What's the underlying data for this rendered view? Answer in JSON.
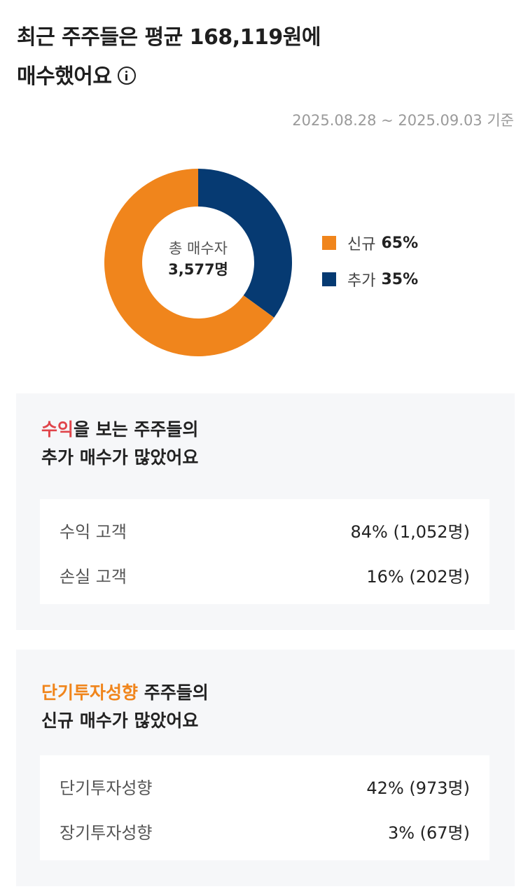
{
  "header": {
    "title_line1": "최근 주주들은 평균 168,119원에",
    "title_line2": "매수했어요",
    "info_icon": "info-circle-icon",
    "date_range": "2025.08.28 ~ 2025.09.03 기준"
  },
  "chart_data": {
    "type": "pie",
    "center_label": "총 매수자",
    "center_value": "3,577명",
    "slices": [
      {
        "name": "신규",
        "value": 65,
        "pct_label": "65%",
        "color": "#f0851c"
      },
      {
        "name": "추가",
        "value": 35,
        "pct_label": "35%",
        "color": "#063a72"
      }
    ]
  },
  "profit_card": {
    "title_highlight": "수익",
    "title_rest": "을 보는 주주들의",
    "title_line2": "추가 매수가 많았어요",
    "highlight_color": "#e0444a",
    "rows": [
      {
        "label": "수익 고객",
        "value": "84% (1,052명)"
      },
      {
        "label": "손실 고객",
        "value": "16% (202명)"
      }
    ]
  },
  "style_card": {
    "title_highlight": "단기투자성향",
    "title_rest": " 주주들의",
    "title_line2": "신규 매수가 많았어요",
    "highlight_color": "#f0851c",
    "rows": [
      {
        "label": "단기투자성향",
        "value": "42% (973명)"
      },
      {
        "label": "장기투자성향",
        "value": "3% (67명)"
      }
    ]
  }
}
